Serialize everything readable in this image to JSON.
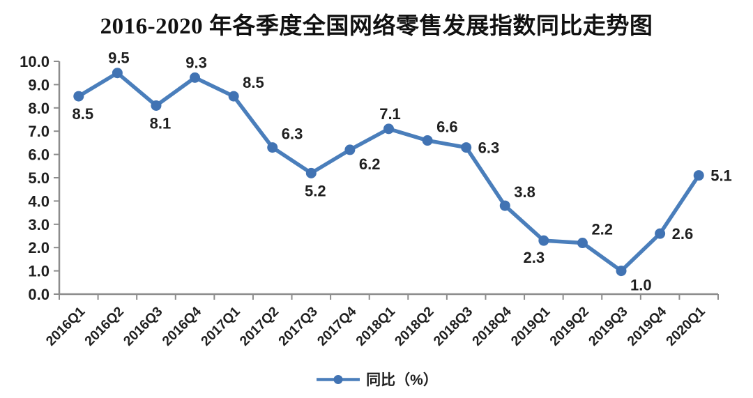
{
  "title": "2016-2020 年各季度全国网络零售发展指数同比走势图",
  "legend": {
    "label": "同比（%）"
  },
  "chart_data": {
    "type": "line",
    "title": "2016-2020 年各季度全国网络零售发展指数同比走势图",
    "categories": [
      "2016Q1",
      "2016Q2",
      "2016Q3",
      "2016Q4",
      "2017Q1",
      "2017Q2",
      "2017Q3",
      "2017Q4",
      "2018Q1",
      "2018Q2",
      "2018Q3",
      "2018Q4",
      "2019Q1",
      "2019Q2",
      "2019Q3",
      "2019Q4",
      "2020Q1"
    ],
    "series": [
      {
        "name": "同比（%）",
        "values": [
          8.5,
          9.5,
          8.1,
          9.3,
          8.5,
          6.3,
          5.2,
          6.2,
          7.1,
          6.6,
          6.3,
          3.8,
          2.3,
          2.2,
          1.0,
          2.6,
          5.1
        ]
      }
    ],
    "ylim": [
      0,
      10
    ],
    "ytick_step": 1.0,
    "ytick_decimals": 1,
    "grid": false,
    "legend_position": "bottom",
    "label_placements": [
      "below",
      "above",
      "below",
      "above",
      "above-right",
      "above-right",
      "below",
      "below-right",
      "above",
      "above-right",
      "right",
      "above-right",
      "below-left",
      "above-right",
      "below-right",
      "right",
      "right"
    ],
    "colors": {
      "line": "#4A7EBB",
      "marker": "#4173B3",
      "axis": "#8C8C8C",
      "text": "#1F1F1F",
      "title_text": "#111111"
    }
  }
}
